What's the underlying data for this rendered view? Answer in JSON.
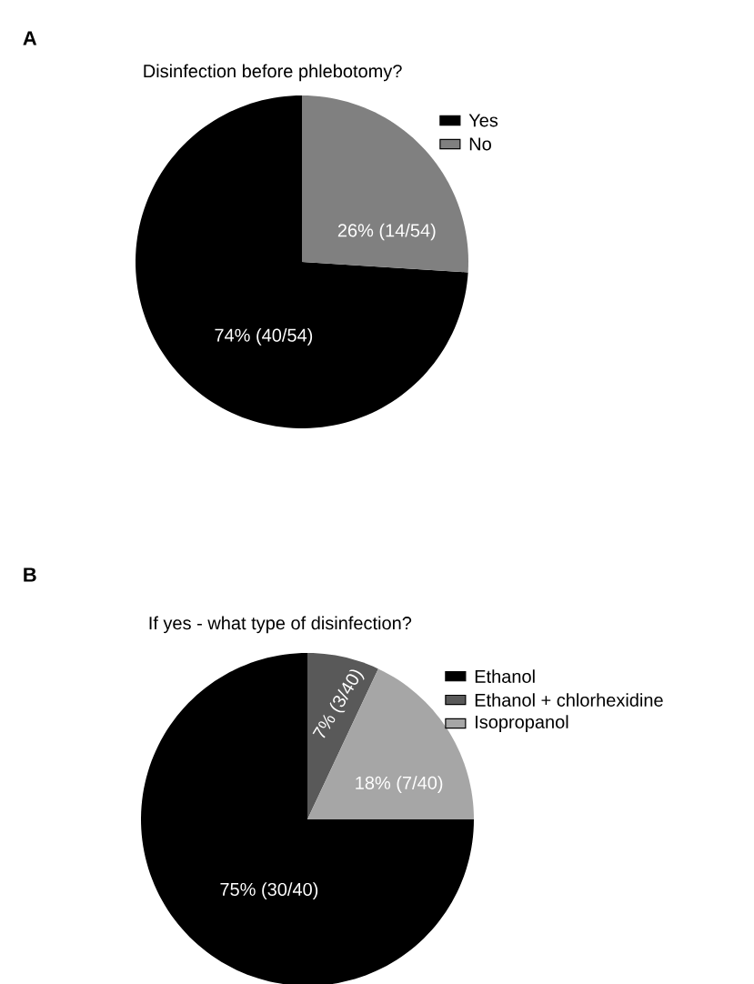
{
  "chart_data": [
    {
      "type": "pie",
      "title": "Disinfection before phlebotomy?",
      "annotations": [
        "A"
      ],
      "categories": [
        "Yes",
        "No"
      ],
      "values": [
        74,
        26
      ],
      "colors": [
        "#000000",
        "#808080"
      ],
      "value_labels": [
        "74% (40/54)",
        "26% (14/54)"
      ],
      "legend": "top right"
    },
    {
      "type": "pie",
      "title": "If yes - what type of disinfection?",
      "annotations": [
        "B"
      ],
      "categories": [
        "Ethanol",
        "Ethanol + chlorhexidine",
        "Isopropanol"
      ],
      "values": [
        75,
        7,
        18
      ],
      "colors": [
        "#000000",
        "#595959",
        "#a6a6a6"
      ],
      "value_labels": [
        "75% (30/40)",
        "7% (3/40)",
        "18% (7/40)"
      ],
      "legend": "top right"
    }
  ]
}
